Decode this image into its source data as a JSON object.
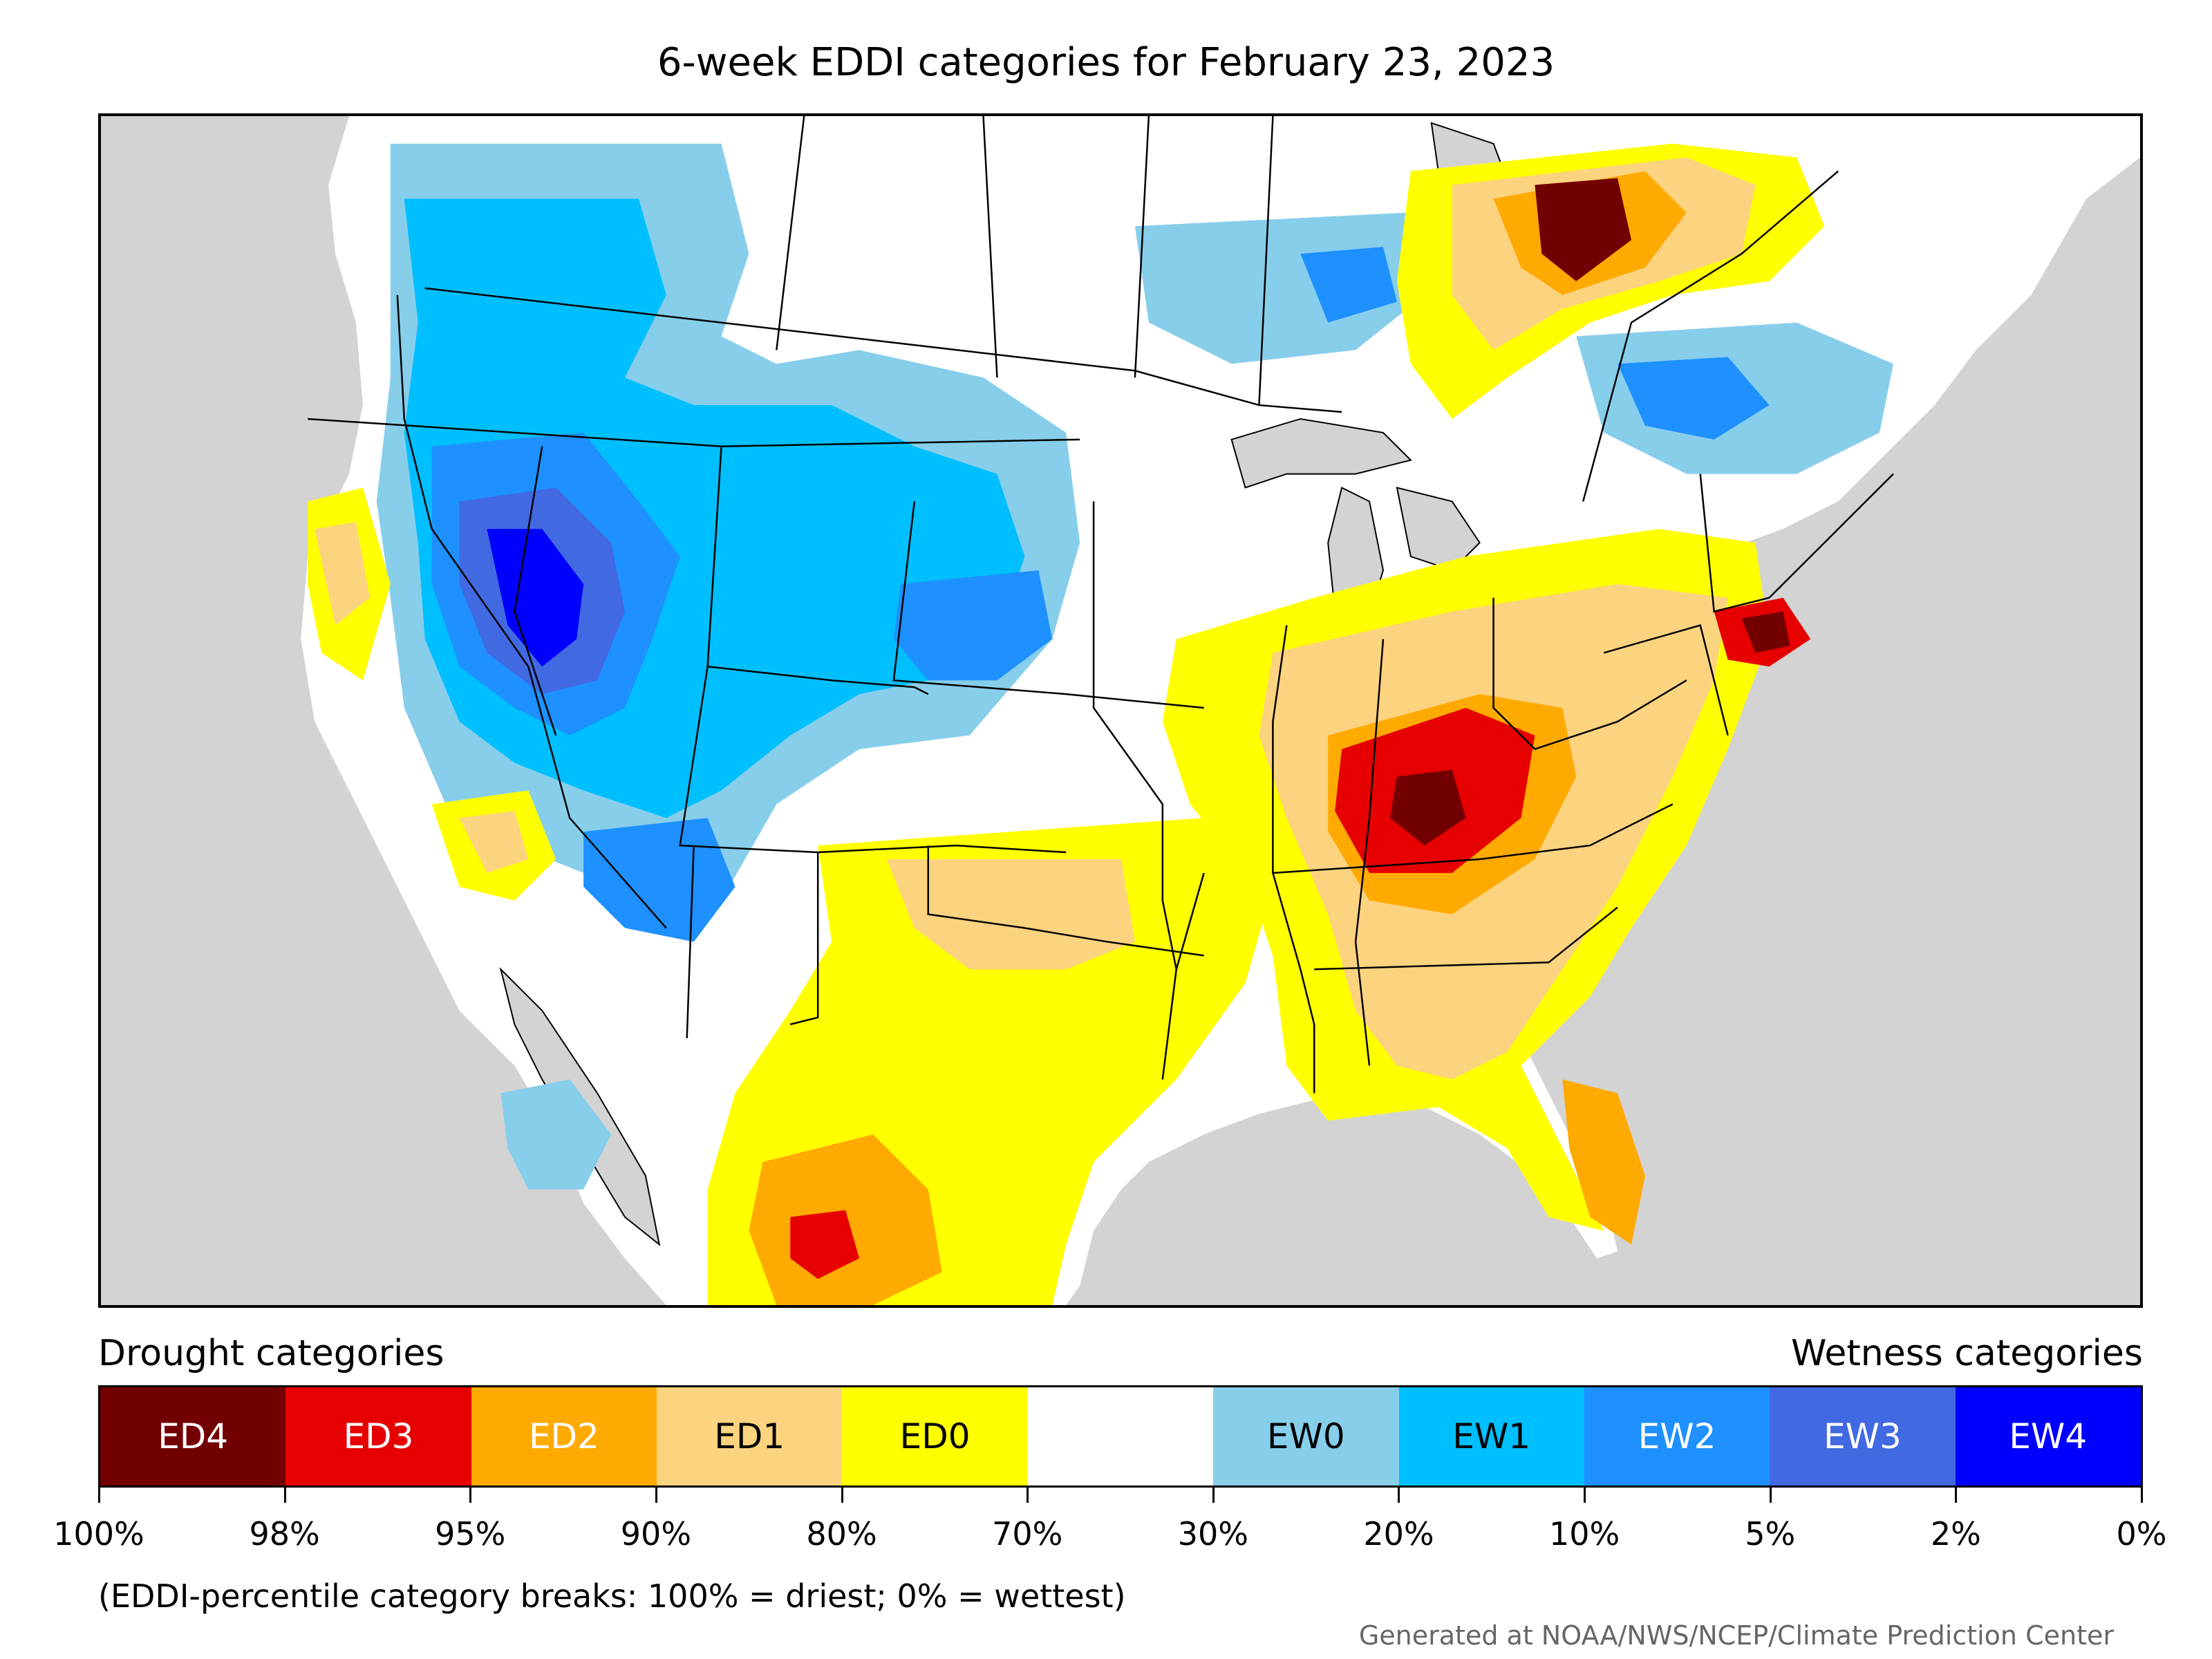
{
  "title": "6-week EDDI categories for February 23, 2023",
  "legend": {
    "drought_heading": "Drought categories",
    "wetness_heading": "Wetness categories",
    "categories": [
      {
        "label": "ED4",
        "color": "#730000",
        "text_color": "#ffffff"
      },
      {
        "label": "ED3",
        "color": "#e60000",
        "text_color": "#ffffff"
      },
      {
        "label": "ED2",
        "color": "#ffaa00",
        "text_color": "#ffffff"
      },
      {
        "label": "ED1",
        "color": "#fcd37f",
        "text_color": "#000000"
      },
      {
        "label": "ED0",
        "color": "#ffff00",
        "text_color": "#000000"
      },
      {
        "label": "",
        "color": "#ffffff",
        "text_color": "#000000"
      },
      {
        "label": "EW0",
        "color": "#87ceeb",
        "text_color": "#000000"
      },
      {
        "label": "EW1",
        "color": "#00bfff",
        "text_color": "#000000"
      },
      {
        "label": "EW2",
        "color": "#1e90ff",
        "text_color": "#ffffff"
      },
      {
        "label": "EW3",
        "color": "#4169e1",
        "text_color": "#ffffff"
      },
      {
        "label": "EW4",
        "color": "#0000ff",
        "text_color": "#ffffff"
      }
    ],
    "tick_labels": [
      "100%",
      "98%",
      "95%",
      "90%",
      "80%",
      "70%",
      "30%",
      "20%",
      "10%",
      "5%",
      "2%",
      "0%"
    ]
  },
  "footnote": "(EDDI-percentile category breaks: 100% = driest; 0% = wettest)",
  "credit": "Generated at NOAA/NWS/NCEP/Climate Prediction Center",
  "colors": {
    "ocean_and_outside": "#d3d3d3",
    "land_neutral": "#ffffff",
    "borders": "#000000"
  }
}
